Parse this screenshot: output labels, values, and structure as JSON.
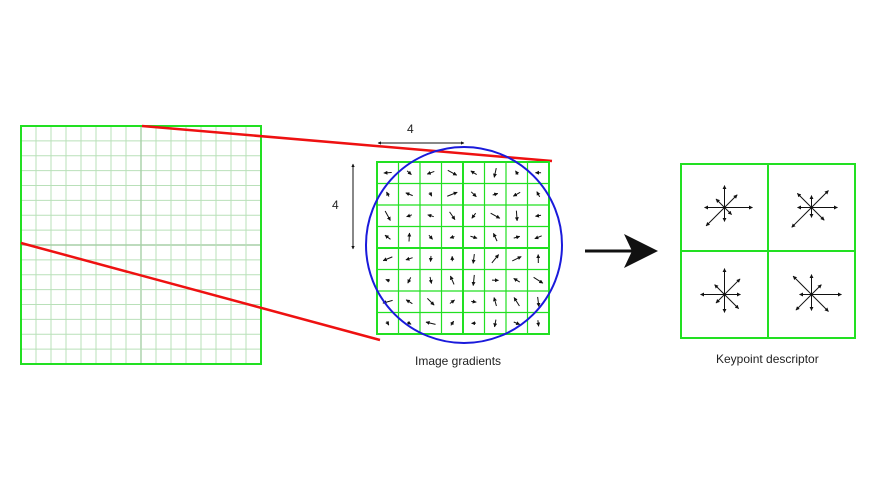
{
  "labels": {
    "top_dimension": "4",
    "side_dimension": "4",
    "gradients_caption": "Image gradients",
    "descriptor_caption": "Keypoint descriptor"
  },
  "colors": {
    "grid_green": "#22e022",
    "grid_light": "#b9e0b9",
    "zoom_red": "#ee1111",
    "circle_blue": "#1a1adb",
    "arrow_black": "#111111"
  },
  "gradient_grid": {
    "cells": 8
  },
  "descriptor_grid": {
    "cells": 2,
    "bins": 8
  },
  "icons": [
    "dimension-arrow-icon",
    "transform-arrow-icon",
    "gradient-arrow-icon",
    "orientation-histogram-icon"
  ]
}
